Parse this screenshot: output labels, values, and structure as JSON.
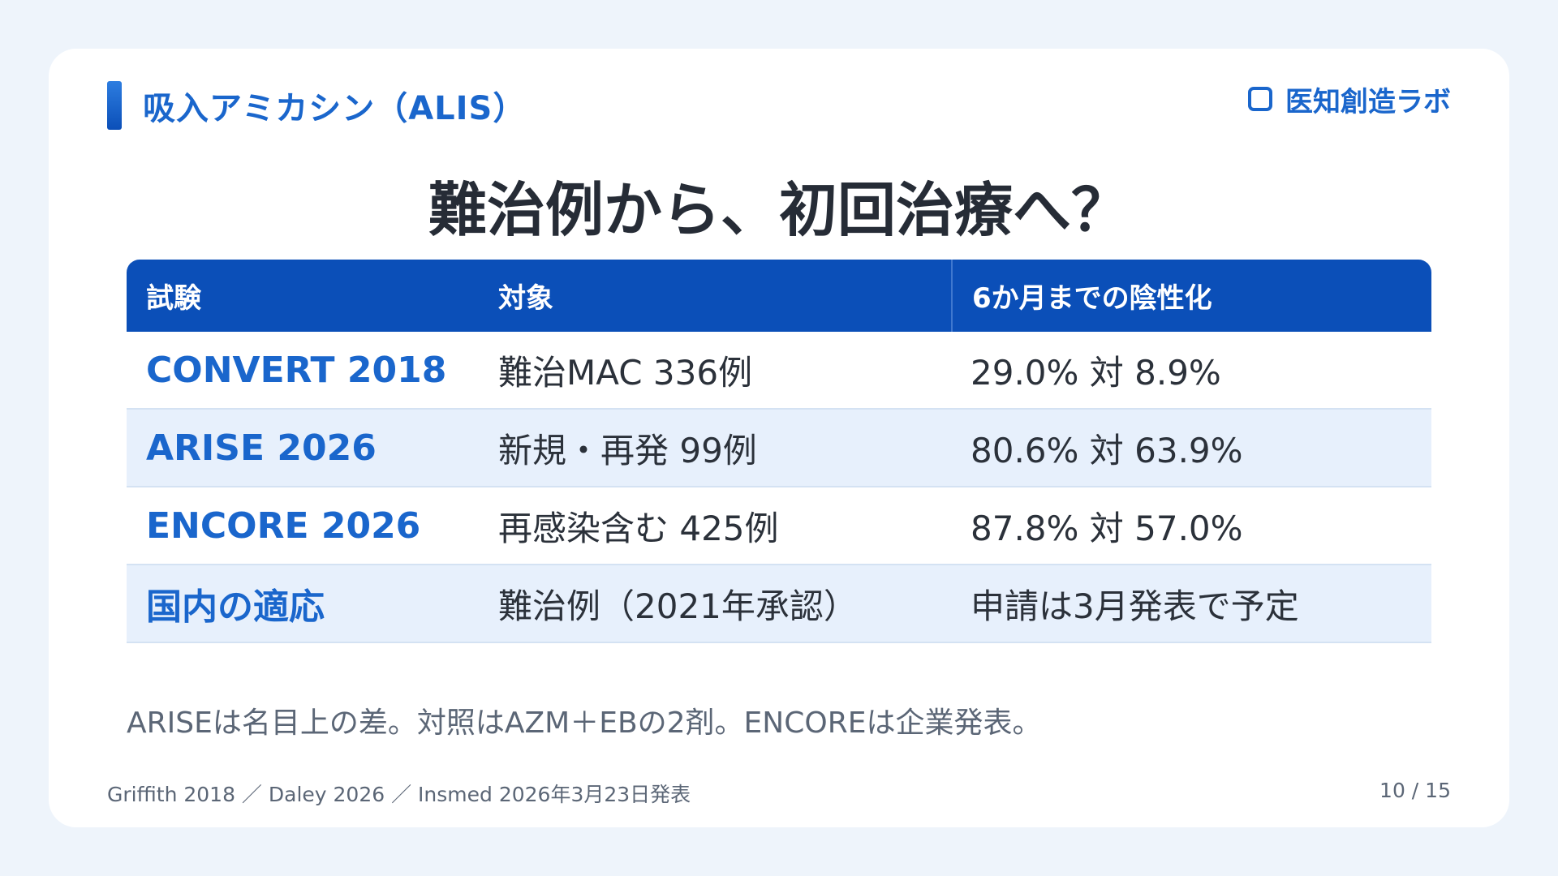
{
  "header": {
    "section_label": "吸入アミカシン（ALIS）",
    "brand_name": "医知創造ラボ",
    "brand_icon": "square-outline-icon"
  },
  "title": "難治例から、初回治療へ？",
  "table": {
    "columns": [
      "試験",
      "対象",
      "6か月までの陰性化"
    ],
    "rows": [
      {
        "trial": "CONVERT 2018",
        "target": "難治MAC 336例",
        "result": "29.0% 対 8.9%"
      },
      {
        "trial": "ARISE 2026",
        "target": "新規・再発 99例",
        "result": "80.6% 対 63.9%"
      },
      {
        "trial": "ENCORE 2026",
        "target": "再感染含む 425例",
        "result": "87.8% 対 57.0%"
      },
      {
        "trial": "国内の適応",
        "target": "難治例（2021年承認）",
        "result": "申請は3月発表で予定"
      }
    ]
  },
  "note": "ARISEは名目上の差。対照はAZM＋EBの2剤。ENCOREは企業発表。",
  "footer": {
    "sources": "Griffith 2018 ／ Daley 2026 ／ Insmed 2026年3月23日発表",
    "page": "10 / 15"
  },
  "colors": {
    "accent": "#1a66cc",
    "header_bg": "#0b4fb8",
    "alt_row": "#e7f0fc",
    "page_bg": "#eef4fb"
  }
}
